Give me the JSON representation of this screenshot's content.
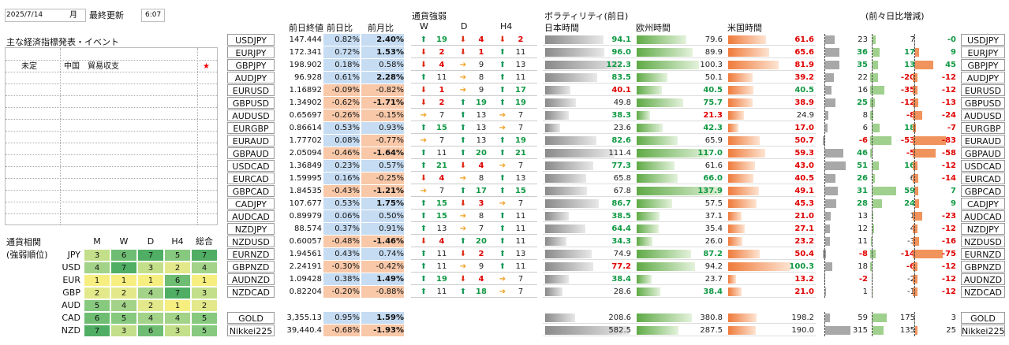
{
  "meta": {
    "date": "2025/7/14",
    "weekday": "月",
    "updated_label": "最終更新",
    "time": "6:07"
  },
  "events": {
    "title": "主な経済指標発表・イベント",
    "rows": [
      {
        "time": "未定",
        "country": "中国",
        "event": "貿易収支",
        "star": "★"
      }
    ]
  },
  "corr": {
    "title": [
      "通貨相関",
      "(強弱順位)"
    ],
    "cols": [
      "M",
      "W",
      "D",
      "H4",
      "総合"
    ],
    "rows": [
      {
        "ccy": "JPY",
        "vals": [
          "3",
          "6",
          "7",
          "5",
          "7"
        ]
      },
      {
        "ccy": "USD",
        "vals": [
          "4",
          "7",
          "3",
          "2",
          "4"
        ]
      },
      {
        "ccy": "EUR",
        "vals": [
          "1",
          "1",
          "1",
          "6",
          "1"
        ]
      },
      {
        "ccy": "GBP",
        "vals": [
          "2",
          "2",
          "4",
          "7",
          "3"
        ]
      },
      {
        "ccy": "AUD",
        "vals": [
          "5",
          "4",
          "2",
          "1",
          "2"
        ]
      },
      {
        "ccy": "CAD",
        "vals": [
          "6",
          "5",
          "4",
          "4",
          "5"
        ]
      },
      {
        "ccy": "NZD",
        "vals": [
          "7",
          "3",
          "6",
          "3",
          "5"
        ]
      }
    ]
  },
  "headers": {
    "prev_close": "前日終値",
    "dod": "前日比",
    "mom": "前月比",
    "strength": "通貨強弱",
    "w": "W",
    "d": "D",
    "h4": "H4",
    "vol": "ボラティリティ(前日)",
    "jp": "日本時間",
    "eu": "欧州時間",
    "us": "米国時間",
    "change": "(前々日比増減)"
  },
  "pairs": [
    {
      "pair": "USDJPY",
      "close": "147.444",
      "dod": "0.82%",
      "mom": "2.40%",
      "w": "19",
      "d": "4",
      "h4": "2",
      "vj": "94.1",
      "ve": "79.6",
      "vu": "61.6",
      "cj": "23",
      "ce": "7",
      "cu": "-0"
    },
    {
      "pair": "EURJPY",
      "close": "172.341",
      "dod": "0.72%",
      "mom": "1.53%",
      "w": "2",
      "d": "1",
      "h4": "11",
      "vj": "96.0",
      "ve": "89.9",
      "vu": "65.6",
      "cj": "36",
      "ce": "17",
      "cu": "9"
    },
    {
      "pair": "GBPJPY",
      "close": "198.902",
      "dod": "0.18%",
      "mom": "0.58%",
      "w": "4",
      "d": "9",
      "h4": "13",
      "vj": "122.3",
      "ve": "100.3",
      "vu": "81.9",
      "cj": "35",
      "ce": "13",
      "cu": "45"
    },
    {
      "pair": "AUDJPY",
      "close": "96.928",
      "dod": "0.61%",
      "mom": "2.28%",
      "w": "11",
      "d": "8",
      "h4": "11",
      "vj": "83.5",
      "ve": "50.1",
      "vu": "39.2",
      "cj": "22",
      "ce": "-20",
      "cu": "-12"
    },
    {
      "pair": "EURUSD",
      "close": "1.16892",
      "dod": "-0.09%",
      "mom": "-0.82%",
      "w": "1",
      "d": "9",
      "h4": "17",
      "vj": "40.1",
      "ve": "40.5",
      "vu": "40.5",
      "cj": "16",
      "ce": "-35",
      "cu": "-12"
    },
    {
      "pair": "GBPUSD",
      "close": "1.34902",
      "dod": "-0.62%",
      "mom": "-1.71%",
      "w": "2",
      "d": "19",
      "h4": "19",
      "vj": "49.8",
      "ve": "75.7",
      "vu": "38.9",
      "cj": "25",
      "ce": "-12",
      "cu": "-13"
    },
    {
      "pair": "AUDUSD",
      "close": "0.65697",
      "dod": "-0.26%",
      "mom": "-0.15%",
      "w": "7",
      "d": "13",
      "h4": "7",
      "vj": "38.3",
      "ve": "21.3",
      "vu": "24.9",
      "cj": "8",
      "ce": "-8",
      "cu": "-24"
    },
    {
      "pair": "EURGBP",
      "close": "0.86614",
      "dod": "0.53%",
      "mom": "0.93%",
      "w": "15",
      "d": "13",
      "h4": "7",
      "vj": "23.6",
      "ve": "42.3",
      "vu": "17.0",
      "cj": "6",
      "ce": "18",
      "cu": "-7"
    },
    {
      "pair": "EURAUD",
      "close": "1.77702",
      "dod": "0.08%",
      "mom": "-0.77%",
      "w": "7",
      "d": "13",
      "h4": "19",
      "vj": "82.6",
      "ve": "65.9",
      "vu": "50.7",
      "cj": "-6",
      "ce": "-53",
      "cu": "-83"
    },
    {
      "pair": "GBPAUD",
      "close": "2.05094",
      "dod": "-0.46%",
      "mom": "-1.64%",
      "w": "11",
      "d": "20",
      "h4": "21",
      "vj": "111.4",
      "ve": "117.0",
      "vu": "59.3",
      "cj": "46",
      "ce": "-5",
      "cu": "-58"
    },
    {
      "pair": "USDCAD",
      "close": "1.36849",
      "dod": "0.23%",
      "mom": "0.57%",
      "w": "21",
      "d": "4",
      "h4": "7",
      "vj": "77.3",
      "ve": "61.6",
      "vu": "43.0",
      "cj": "51",
      "ce": "16",
      "cu": "-12"
    },
    {
      "pair": "EURCAD",
      "close": "1.59995",
      "dod": "0.16%",
      "mom": "-0.25%",
      "w": "4",
      "d": "8",
      "h4": "13",
      "vj": "65.8",
      "ve": "66.0",
      "vu": "40.5",
      "cj": "26",
      "ce": "6",
      "cu": "-14"
    },
    {
      "pair": "GBPCAD",
      "close": "1.84535",
      "dod": "-0.43%",
      "mom": "-1.21%",
      "w": "7",
      "d": "17",
      "h4": "15",
      "vj": "67.8",
      "ve": "137.9",
      "vu": "49.1",
      "cj": "31",
      "ce": "59",
      "cu": "7"
    },
    {
      "pair": "CADJPY",
      "close": "107.677",
      "dod": "0.53%",
      "mom": "1.75%",
      "w": "15",
      "d": "3",
      "h4": "7",
      "vj": "86.7",
      "ve": "57.5",
      "vu": "45.3",
      "cj": "28",
      "ce": "24",
      "cu": "9"
    },
    {
      "pair": "AUDCAD",
      "close": "0.89979",
      "dod": "0.06%",
      "mom": "0.50%",
      "w": "15",
      "d": "8",
      "h4": "11",
      "vj": "38.5",
      "ve": "37.1",
      "vu": "21.0",
      "cj": "13",
      "ce": "1",
      "cu": "-23"
    },
    {
      "pair": "NZDJPY",
      "close": "88.574",
      "dod": "0.37%",
      "mom": "0.91%",
      "w": "13",
      "d": "7",
      "h4": "11",
      "vj": "64.4",
      "ve": "35.4",
      "vu": "27.1",
      "cj": "12",
      "ce": "4",
      "cu": "-12"
    },
    {
      "pair": "NZDUSD",
      "close": "0.60057",
      "dod": "-0.48%",
      "mom": "-1.46%",
      "w": "4",
      "d": "20",
      "h4": "11",
      "vj": "34.3",
      "ve": "26.0",
      "vu": "23.2",
      "cj": "11",
      "ce": "-3",
      "cu": "-16"
    },
    {
      "pair": "EURNZD",
      "close": "1.94561",
      "dod": "0.43%",
      "mom": "0.74%",
      "w": "11",
      "d": "2",
      "h4": "13",
      "vj": "74.9",
      "ve": "87.2",
      "vu": "50.4",
      "cj": "-8",
      "ce": "-14",
      "cu": "-75"
    },
    {
      "pair": "GBPNZD",
      "close": "2.24191",
      "dod": "-0.30%",
      "mom": "-0.42%",
      "w": "11",
      "d": "9",
      "h4": "11",
      "vj": "77.2",
      "ve": "94.2",
      "vu": "100.3",
      "cj": "18",
      "ce": "-6",
      "cu": "-12"
    },
    {
      "pair": "AUDNZD",
      "close": "1.09428",
      "dod": "0.38%",
      "mom": "1.49%",
      "w": "19",
      "d": "4",
      "h4": "7",
      "vj": "38.4",
      "ve": "23.7",
      "vu": "13.2",
      "cj": "-2",
      "ce": "-2",
      "cu": "-12"
    },
    {
      "pair": "NZDCAD",
      "close": "0.82204",
      "dod": "-0.20%",
      "mom": "-0.88%",
      "w": "11",
      "d": "18",
      "h4": "7",
      "vj": "28.6",
      "ve": "38.4",
      "vu": "21.0",
      "cj": "1",
      "ce": "-1",
      "cu": "-12"
    }
  ],
  "extras": [
    {
      "pair": "GOLD",
      "close": "3,355.13",
      "dod": "0.95%",
      "mom": "1.59%",
      "vj": "208.6",
      "ve": "380.8",
      "vu": "198.2",
      "cj": "59",
      "ce": "175",
      "cu": "3"
    },
    {
      "pair": "Nikkei225",
      "close": "39,440.4",
      "dod": "-0.68%",
      "mom": "-1.93%",
      "vj": "582.5",
      "ve": "287.5",
      "vu": "190.0",
      "cj": "315",
      "ce": "135",
      "cu": "25"
    }
  ],
  "colors": {
    "up": "#1a9a5a",
    "down": "#e03018",
    "side": "#f0a020",
    "pos_bg": "#c6dcf2",
    "neg_bg": "#f8c8a8",
    "green_hi": "#119944",
    "red_hi": "#e00000"
  }
}
